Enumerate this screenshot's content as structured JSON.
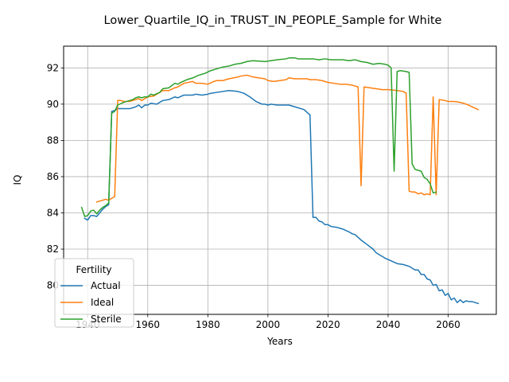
{
  "chart_data": {
    "type": "line",
    "title": "Lower_Quartile_IQ_in_TRUST_IN_PEOPLE_Sample for White",
    "xlabel": "Years",
    "ylabel": "IQ",
    "xlim": [
      1932,
      2076
    ],
    "ylim": [
      78.4,
      93.2
    ],
    "xticks": [
      1940,
      1960,
      1980,
      2000,
      2020,
      2040,
      2060
    ],
    "yticks": [
      80,
      82,
      84,
      86,
      88,
      90,
      92
    ],
    "grid": true,
    "legend": {
      "title": "Fertility",
      "placement": "lower-left"
    },
    "colors": {
      "Actual": "#1f77b4",
      "Ideal": "#ff7f0e",
      "Sterile": "#2ca02c"
    },
    "series": [
      {
        "name": "Actual",
        "points": [
          [
            1939,
            83.7
          ],
          [
            1940,
            83.6
          ],
          [
            1941,
            83.85
          ],
          [
            1942,
            83.85
          ],
          [
            1943,
            83.8
          ],
          [
            1944,
            84.0
          ],
          [
            1945,
            84.2
          ],
          [
            1946,
            84.35
          ],
          [
            1947,
            84.45
          ],
          [
            1948,
            89.6
          ],
          [
            1949,
            89.65
          ],
          [
            1950,
            89.75
          ],
          [
            1952,
            89.75
          ],
          [
            1954,
            89.75
          ],
          [
            1956,
            89.85
          ],
          [
            1957,
            89.95
          ],
          [
            1958,
            89.8
          ],
          [
            1959,
            89.95
          ],
          [
            1960,
            89.95
          ],
          [
            1961,
            90.05
          ],
          [
            1963,
            90.0
          ],
          [
            1965,
            90.2
          ],
          [
            1967,
            90.25
          ],
          [
            1969,
            90.4
          ],
          [
            1970,
            90.35
          ],
          [
            1972,
            90.5
          ],
          [
            1975,
            90.5
          ],
          [
            1976,
            90.55
          ],
          [
            1978,
            90.5
          ],
          [
            1980,
            90.55
          ],
          [
            1981,
            90.6
          ],
          [
            1983,
            90.65
          ],
          [
            1985,
            90.7
          ],
          [
            1987,
            90.75
          ],
          [
            1990,
            90.7
          ],
          [
            1992,
            90.6
          ],
          [
            1994,
            90.4
          ],
          [
            1996,
            90.15
          ],
          [
            1998,
            90.0
          ],
          [
            1999,
            90.0
          ],
          [
            2000,
            89.95
          ],
          [
            2001,
            90.0
          ],
          [
            2003,
            89.95
          ],
          [
            2005,
            89.95
          ],
          [
            2007,
            89.95
          ],
          [
            2009,
            89.85
          ],
          [
            2011,
            89.75
          ],
          [
            2012,
            89.7
          ],
          [
            2013,
            89.55
          ],
          [
            2014,
            89.4
          ],
          [
            2015,
            83.75
          ],
          [
            2016,
            83.75
          ],
          [
            2017,
            83.55
          ],
          [
            2018,
            83.5
          ],
          [
            2019,
            83.35
          ],
          [
            2020,
            83.35
          ],
          [
            2021,
            83.25
          ],
          [
            2023,
            83.2
          ],
          [
            2025,
            83.1
          ],
          [
            2027,
            82.95
          ],
          [
            2028,
            82.85
          ],
          [
            2029,
            82.8
          ],
          [
            2030,
            82.65
          ],
          [
            2031,
            82.5
          ],
          [
            2033,
            82.25
          ],
          [
            2035,
            82.0
          ],
          [
            2036,
            81.8
          ],
          [
            2038,
            81.6
          ],
          [
            2039,
            81.5
          ],
          [
            2041,
            81.35
          ],
          [
            2043,
            81.2
          ],
          [
            2045,
            81.15
          ],
          [
            2047,
            81.05
          ],
          [
            2049,
            80.85
          ],
          [
            2050,
            80.85
          ],
          [
            2051,
            80.6
          ],
          [
            2052,
            80.6
          ],
          [
            2053,
            80.35
          ],
          [
            2054,
            80.3
          ],
          [
            2055,
            80.0
          ],
          [
            2056,
            80.05
          ],
          [
            2057,
            79.7
          ],
          [
            2058,
            79.75
          ],
          [
            2059,
            79.45
          ],
          [
            2060,
            79.55
          ],
          [
            2061,
            79.2
          ],
          [
            2062,
            79.3
          ],
          [
            2063,
            79.05
          ],
          [
            2064,
            79.2
          ],
          [
            2065,
            79.05
          ],
          [
            2066,
            79.15
          ],
          [
            2067,
            79.1
          ],
          [
            2068,
            79.1
          ],
          [
            2069,
            79.05
          ],
          [
            2070,
            79.0
          ]
        ]
      },
      {
        "name": "Ideal",
        "points": [
          [
            1943,
            84.6
          ],
          [
            1945,
            84.7
          ],
          [
            1946,
            84.75
          ],
          [
            1947,
            84.7
          ],
          [
            1948,
            84.8
          ],
          [
            1949,
            84.9
          ],
          [
            1950,
            90.2
          ],
          [
            1951,
            90.2
          ],
          [
            1952,
            90.15
          ],
          [
            1954,
            90.15
          ],
          [
            1955,
            90.2
          ],
          [
            1957,
            90.3
          ],
          [
            1958,
            90.2
          ],
          [
            1960,
            90.4
          ],
          [
            1962,
            90.45
          ],
          [
            1964,
            90.65
          ],
          [
            1965,
            90.75
          ],
          [
            1967,
            90.75
          ],
          [
            1969,
            90.9
          ],
          [
            1970,
            90.95
          ],
          [
            1972,
            91.15
          ],
          [
            1975,
            91.25
          ],
          [
            1976,
            91.15
          ],
          [
            1978,
            91.15
          ],
          [
            1980,
            91.1
          ],
          [
            1982,
            91.25
          ],
          [
            1983,
            91.3
          ],
          [
            1985,
            91.3
          ],
          [
            1987,
            91.4
          ],
          [
            1990,
            91.5
          ],
          [
            1991,
            91.55
          ],
          [
            1993,
            91.6
          ],
          [
            1995,
            91.5
          ],
          [
            1997,
            91.45
          ],
          [
            1999,
            91.4
          ],
          [
            2000,
            91.3
          ],
          [
            2002,
            91.25
          ],
          [
            2004,
            91.3
          ],
          [
            2006,
            91.35
          ],
          [
            2007,
            91.45
          ],
          [
            2009,
            91.4
          ],
          [
            2011,
            91.4
          ],
          [
            2013,
            91.4
          ],
          [
            2014,
            91.35
          ],
          [
            2016,
            91.35
          ],
          [
            2018,
            91.3
          ],
          [
            2020,
            91.2
          ],
          [
            2022,
            91.15
          ],
          [
            2024,
            91.1
          ],
          [
            2026,
            91.1
          ],
          [
            2028,
            91.05
          ],
          [
            2030,
            90.95
          ],
          [
            2031,
            85.5
          ],
          [
            2032,
            90.95
          ],
          [
            2034,
            90.9
          ],
          [
            2036,
            90.85
          ],
          [
            2038,
            90.8
          ],
          [
            2040,
            90.8
          ],
          [
            2043,
            90.75
          ],
          [
            2045,
            90.7
          ],
          [
            2046,
            90.6
          ],
          [
            2047,
            85.2
          ],
          [
            2048,
            85.15
          ],
          [
            2049,
            85.15
          ],
          [
            2050,
            85.05
          ],
          [
            2051,
            85.1
          ],
          [
            2052,
            85.0
          ],
          [
            2053,
            85.05
          ],
          [
            2054,
            85.0
          ],
          [
            2055,
            90.4
          ],
          [
            2056,
            85.0
          ],
          [
            2057,
            90.25
          ],
          [
            2059,
            90.2
          ],
          [
            2060,
            90.15
          ],
          [
            2062,
            90.15
          ],
          [
            2064,
            90.1
          ],
          [
            2066,
            90.0
          ],
          [
            2068,
            89.85
          ],
          [
            2070,
            89.7
          ]
        ]
      },
      {
        "name": "Sterile",
        "points": [
          [
            1938,
            84.3
          ],
          [
            1939,
            83.8
          ],
          [
            1940,
            83.85
          ],
          [
            1941,
            84.1
          ],
          [
            1942,
            84.15
          ],
          [
            1943,
            83.95
          ],
          [
            1944,
            84.15
          ],
          [
            1945,
            84.3
          ],
          [
            1946,
            84.4
          ],
          [
            1947,
            84.55
          ],
          [
            1948,
            89.5
          ],
          [
            1949,
            89.6
          ],
          [
            1950,
            89.95
          ],
          [
            1952,
            90.1
          ],
          [
            1954,
            90.2
          ],
          [
            1955,
            90.25
          ],
          [
            1956,
            90.35
          ],
          [
            1957,
            90.4
          ],
          [
            1958,
            90.35
          ],
          [
            1959,
            90.4
          ],
          [
            1960,
            90.4
          ],
          [
            1961,
            90.55
          ],
          [
            1962,
            90.5
          ],
          [
            1964,
            90.65
          ],
          [
            1965,
            90.85
          ],
          [
            1967,
            90.9
          ],
          [
            1969,
            91.15
          ],
          [
            1970,
            91.1
          ],
          [
            1971,
            91.2
          ],
          [
            1973,
            91.35
          ],
          [
            1975,
            91.45
          ],
          [
            1977,
            91.6
          ],
          [
            1979,
            91.7
          ],
          [
            1981,
            91.85
          ],
          [
            1983,
            91.95
          ],
          [
            1985,
            92.05
          ],
          [
            1987,
            92.1
          ],
          [
            1989,
            92.2
          ],
          [
            1991,
            92.25
          ],
          [
            1993,
            92.35
          ],
          [
            1995,
            92.4
          ],
          [
            1999,
            92.35
          ],
          [
            2001,
            92.4
          ],
          [
            2003,
            92.45
          ],
          [
            2006,
            92.5
          ],
          [
            2007,
            92.55
          ],
          [
            2009,
            92.55
          ],
          [
            2010,
            92.5
          ],
          [
            2012,
            92.5
          ],
          [
            2015,
            92.5
          ],
          [
            2017,
            92.45
          ],
          [
            2019,
            92.5
          ],
          [
            2021,
            92.45
          ],
          [
            2025,
            92.45
          ],
          [
            2027,
            92.4
          ],
          [
            2029,
            92.45
          ],
          [
            2031,
            92.35
          ],
          [
            2033,
            92.3
          ],
          [
            2035,
            92.2
          ],
          [
            2037,
            92.25
          ],
          [
            2039,
            92.2
          ],
          [
            2040,
            92.15
          ],
          [
            2041,
            92.0
          ],
          [
            2042,
            86.3
          ],
          [
            2043,
            91.8
          ],
          [
            2044,
            91.85
          ],
          [
            2046,
            91.8
          ],
          [
            2047,
            91.75
          ],
          [
            2048,
            86.7
          ],
          [
            2049,
            86.4
          ],
          [
            2050,
            86.35
          ],
          [
            2051,
            86.3
          ],
          [
            2052,
            85.95
          ],
          [
            2053,
            85.85
          ],
          [
            2054,
            85.6
          ],
          [
            2055,
            85.1
          ],
          [
            2056,
            85.15
          ]
        ]
      }
    ]
  }
}
